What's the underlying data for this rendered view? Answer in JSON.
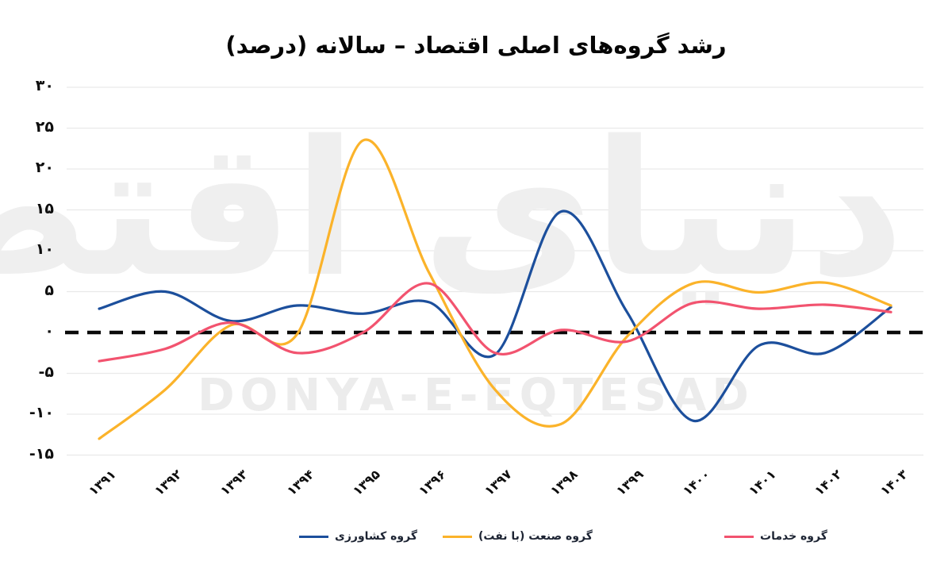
{
  "title": "رشد گروه‌های اصلی اقتصاد – سالانه (درصد)",
  "watermark": {
    "fa": "دنیای اقتصاد",
    "en": "DONYA-E-EQTESAD"
  },
  "chart_data": {
    "type": "line",
    "title": "رشد گروه‌های اصلی اقتصاد – سالانه (درصد)",
    "categories": [
      "۱۳۹۱",
      "۱۳۹۲",
      "۱۳۹۳",
      "۱۳۹۴",
      "۱۳۹۵",
      "۱۳۹۶",
      "۱۳۹۷",
      "۱۳۹۸",
      "۱۳۹۹",
      "۱۴۰۰",
      "۱۴۰۱",
      "۱۴۰۲",
      "۱۴۰۳"
    ],
    "series": [
      {
        "name": "گروه کشاورزی",
        "color": "#1c4f9c",
        "values": [
          2.9,
          5.0,
          1.4,
          3.3,
          2.3,
          3.7,
          -2.7,
          14.8,
          2.5,
          -10.8,
          -1.6,
          -2.5,
          3.1
        ]
      },
      {
        "name": "گروه صنعت (با نفت)",
        "color": "#fbb32a",
        "values": [
          -13.0,
          -7.0,
          0.9,
          -0.2,
          23.5,
          7.3,
          -7.0,
          -11.2,
          -0.5,
          6.0,
          4.9,
          6.1,
          3.3
        ]
      },
      {
        "name": "گروه خدمات",
        "color": "#f2536f",
        "values": [
          -3.5,
          -2.0,
          1.2,
          -2.5,
          0.0,
          6.0,
          -2.5,
          0.3,
          -1.1,
          3.6,
          2.9,
          3.4,
          2.5
        ]
      }
    ],
    "y_ticks": {
      "labels": [
        "۳۰",
        "۲۵",
        "۲۰",
        "۱۵",
        "۱۰",
        "۵",
        "۰",
        "-۵",
        "-۱۰",
        "-۱۵"
      ],
      "values": [
        30,
        25,
        20,
        15,
        10,
        5,
        0,
        -5,
        -10,
        -15
      ]
    },
    "ylim": [
      -15,
      30
    ],
    "xlabel": "",
    "ylabel": "",
    "grid": "horizontal-light",
    "zero_line": "black-dashed",
    "line_style": "smooth-spline",
    "legend_position": "bottom",
    "grid_color": "#e9e9e9",
    "zero_line_color": "#0a0a0a"
  }
}
